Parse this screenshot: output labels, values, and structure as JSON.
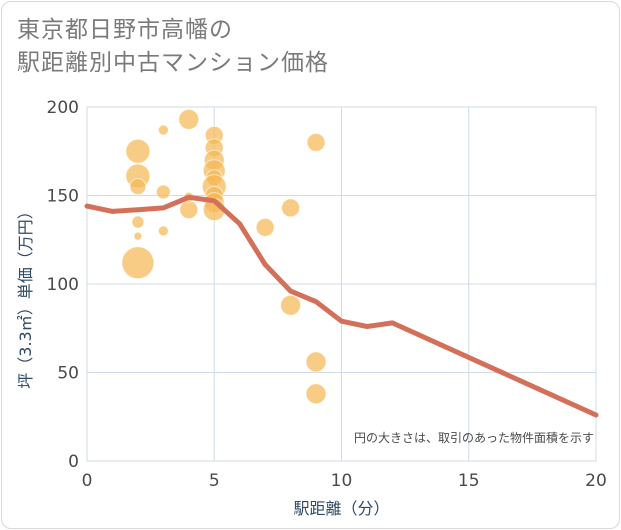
{
  "title": {
    "line1": "東京都日野市高幡の",
    "line2": "駅距離別中古マンション価格"
  },
  "colors": {
    "bubble": "#f5b955",
    "line": "#d4705a",
    "grid": "#cfdbe6",
    "plot_bg": "#ffffff"
  },
  "chart_data": {
    "type": "scatter",
    "xlabel": "駅距離（分）",
    "ylabel": "坪（3.3㎡）単価（万円）",
    "xlim": [
      0,
      20
    ],
    "ylim": [
      0,
      200
    ],
    "xticks": [
      "0",
      "5",
      "10",
      "15",
      "20"
    ],
    "yticks": [
      "0",
      "50",
      "100",
      "150",
      "200"
    ],
    "grid": true,
    "annotation": "円の大きさは、取引のあった物件面積を示す",
    "series": [
      {
        "type": "bubble",
        "points": [
          {
            "x": 1,
            "y": 141,
            "r": 3
          },
          {
            "x": 2,
            "y": 175,
            "r": 12
          },
          {
            "x": 2,
            "y": 161,
            "r": 12
          },
          {
            "x": 2,
            "y": 155,
            "r": 8
          },
          {
            "x": 2,
            "y": 135,
            "r": 6
          },
          {
            "x": 2,
            "y": 127,
            "r": 4
          },
          {
            "x": 2,
            "y": 112,
            "r": 16
          },
          {
            "x": 3,
            "y": 187,
            "r": 5
          },
          {
            "x": 3,
            "y": 152,
            "r": 7
          },
          {
            "x": 3,
            "y": 130,
            "r": 5
          },
          {
            "x": 4,
            "y": 193,
            "r": 10
          },
          {
            "x": 4,
            "y": 142,
            "r": 9
          },
          {
            "x": 4,
            "y": 149,
            "r": 5
          },
          {
            "x": 5,
            "y": 184,
            "r": 9
          },
          {
            "x": 5,
            "y": 177,
            "r": 9
          },
          {
            "x": 5,
            "y": 170,
            "r": 10
          },
          {
            "x": 5,
            "y": 164,
            "r": 11
          },
          {
            "x": 5,
            "y": 160,
            "r": 8
          },
          {
            "x": 5,
            "y": 155,
            "r": 12
          },
          {
            "x": 5,
            "y": 150,
            "r": 9
          },
          {
            "x": 5,
            "y": 146,
            "r": 10
          },
          {
            "x": 5,
            "y": 142,
            "r": 11
          },
          {
            "x": 7,
            "y": 132,
            "r": 9
          },
          {
            "x": 8,
            "y": 143,
            "r": 9
          },
          {
            "x": 8,
            "y": 88,
            "r": 10
          },
          {
            "x": 9,
            "y": 180,
            "r": 9
          },
          {
            "x": 9,
            "y": 56,
            "r": 10
          },
          {
            "x": 9,
            "y": 38,
            "r": 10
          }
        ]
      },
      {
        "type": "line",
        "points": [
          {
            "x": 0,
            "y": 144
          },
          {
            "x": 1,
            "y": 141
          },
          {
            "x": 2,
            "y": 142
          },
          {
            "x": 3,
            "y": 143
          },
          {
            "x": 4,
            "y": 149
          },
          {
            "x": 5,
            "y": 147
          },
          {
            "x": 6,
            "y": 134
          },
          {
            "x": 7,
            "y": 111
          },
          {
            "x": 8,
            "y": 96
          },
          {
            "x": 9,
            "y": 90
          },
          {
            "x": 10,
            "y": 79
          },
          {
            "x": 11,
            "y": 76
          },
          {
            "x": 12,
            "y": 78
          },
          {
            "x": 20,
            "y": 26
          }
        ]
      }
    ]
  }
}
